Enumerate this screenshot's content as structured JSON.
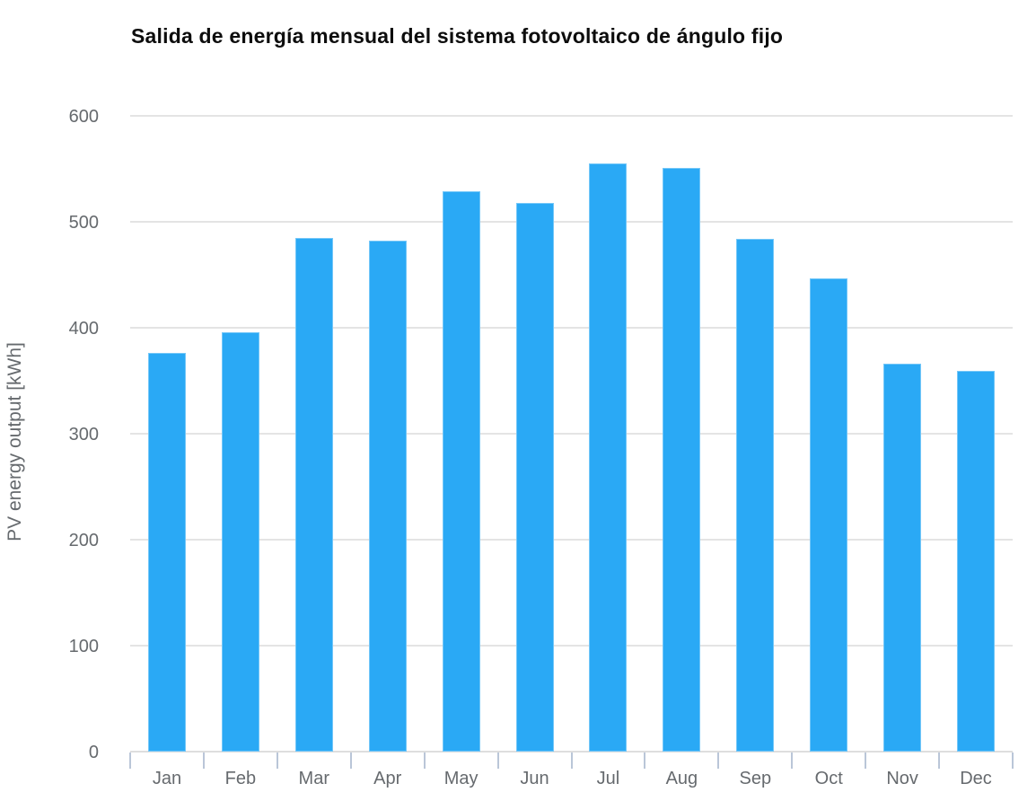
{
  "title": "Salida de energía mensual del sistema fotovoltaico de ángulo fijo",
  "chart_data": {
    "type": "bar",
    "title": "Salida de energía mensual del sistema fotovoltaico de ángulo fijo",
    "categories": [
      "Jan",
      "Feb",
      "Mar",
      "Apr",
      "May",
      "Jun",
      "Jul",
      "Aug",
      "Sep",
      "Oct",
      "Nov",
      "Dec"
    ],
    "values": [
      376,
      396,
      485,
      482,
      529,
      518,
      555,
      551,
      484,
      447,
      366,
      359
    ],
    "xlabel": "",
    "ylabel": "PV energy output [kWh]",
    "ylim": [
      0,
      600
    ],
    "yticks": [
      0,
      100,
      200,
      300,
      400,
      500,
      600
    ],
    "grid": true,
    "legend_position": "none",
    "bar_color": "#2aa9f5",
    "grid_color": "#e4e4e4",
    "axis_text_color": "#666a6e",
    "tick_color": "#bac6d8"
  }
}
